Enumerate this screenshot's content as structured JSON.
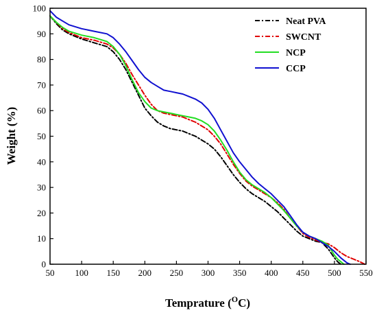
{
  "chart_data": {
    "type": "line",
    "xlabel": "Temprature",
    "xlabel_unit_base": "C",
    "xlabel_unit_sup": "O",
    "ylabel": "Weight (%)",
    "xlim": [
      50,
      550
    ],
    "ylim": [
      0,
      100
    ],
    "xticks": [
      50,
      100,
      150,
      200,
      250,
      300,
      350,
      400,
      450,
      500,
      550
    ],
    "yticks": [
      0,
      10,
      20,
      30,
      40,
      50,
      60,
      70,
      80,
      90,
      100
    ],
    "grid": false,
    "legend_position": "top-right",
    "series": [
      {
        "name": "Neat PVA",
        "color": "#000000",
        "dash": "dashdot",
        "x": [
          50,
          60,
          70,
          80,
          100,
          120,
          140,
          150,
          160,
          170,
          180,
          190,
          200,
          210,
          220,
          230,
          240,
          250,
          260,
          270,
          280,
          290,
          300,
          310,
          320,
          330,
          340,
          350,
          360,
          370,
          380,
          390,
          400,
          410,
          420,
          430,
          440,
          450,
          460,
          470,
          480,
          490,
          500,
          505,
          510
        ],
        "values": [
          97,
          94,
          91.5,
          90,
          88,
          86.5,
          85,
          83,
          80,
          76,
          71,
          66,
          61,
          58,
          55.5,
          54,
          53,
          52.5,
          52,
          51,
          50,
          48.5,
          47,
          45,
          42,
          38.5,
          35,
          32,
          29.5,
          27.5,
          26,
          24.5,
          22.5,
          20.5,
          18,
          15.5,
          13,
          11,
          10,
          9,
          8.5,
          6,
          2.5,
          1,
          0
        ]
      },
      {
        "name": "SWCNT",
        "color": "#e00000",
        "dash": "dashdot",
        "x": [
          50,
          60,
          70,
          80,
          100,
          120,
          140,
          150,
          160,
          170,
          180,
          190,
          200,
          210,
          220,
          230,
          240,
          250,
          260,
          270,
          280,
          290,
          300,
          310,
          320,
          330,
          340,
          350,
          360,
          370,
          380,
          390,
          400,
          410,
          420,
          430,
          440,
          450,
          460,
          470,
          480,
          490,
          500,
          510,
          520,
          530,
          540,
          548
        ],
        "values": [
          97,
          94.5,
          92,
          90.5,
          88.5,
          87.5,
          86,
          84.5,
          82,
          78.5,
          74,
          70,
          66,
          62.5,
          60,
          59,
          58.5,
          58,
          57.5,
          56.5,
          55.5,
          54,
          52.5,
          50,
          47,
          43,
          39,
          35.5,
          32.5,
          30.5,
          29,
          27.5,
          26,
          24,
          21.5,
          18,
          15,
          12,
          10.5,
          9.5,
          8.5,
          8,
          6.5,
          4.5,
          3,
          2,
          1,
          0
        ]
      },
      {
        "name": "NCP",
        "color": "#22dd22",
        "dash": "solid",
        "x": [
          50,
          60,
          70,
          80,
          100,
          120,
          140,
          150,
          160,
          170,
          180,
          190,
          200,
          210,
          220,
          230,
          240,
          250,
          260,
          270,
          280,
          290,
          300,
          310,
          320,
          330,
          340,
          350,
          360,
          370,
          380,
          390,
          400,
          410,
          420,
          430,
          440,
          450,
          460,
          470,
          480,
          490,
          495,
          500,
          505,
          510,
          515
        ],
        "values": [
          97,
          94.5,
          92.5,
          91,
          89.5,
          88.5,
          87,
          85,
          82,
          77.5,
          72,
          67,
          63.5,
          61,
          60,
          59.5,
          59,
          58.5,
          58,
          57.5,
          57,
          56,
          54.5,
          52,
          48.5,
          44.5,
          40,
          36,
          33,
          31,
          29.5,
          28,
          26,
          23.5,
          21,
          18,
          15,
          12.5,
          11,
          10,
          9,
          7.5,
          5.5,
          3.5,
          2,
          1,
          0
        ]
      },
      {
        "name": "CCP",
        "color": "#1010d0",
        "dash": "solid",
        "x": [
          50,
          60,
          70,
          80,
          100,
          120,
          140,
          150,
          160,
          170,
          180,
          190,
          200,
          210,
          220,
          230,
          240,
          250,
          260,
          270,
          280,
          290,
          300,
          310,
          320,
          330,
          340,
          350,
          360,
          370,
          380,
          390,
          400,
          410,
          420,
          430,
          440,
          450,
          460,
          470,
          480,
          490,
          500,
          510,
          520,
          525
        ],
        "values": [
          99,
          96.5,
          95,
          93.5,
          92,
          91,
          90,
          88.5,
          86,
          83,
          79.5,
          76,
          73,
          71,
          69.5,
          68,
          67.5,
          67,
          66.5,
          65.5,
          64.5,
          63,
          60.5,
          57,
          52.5,
          48,
          43.5,
          40,
          37,
          34,
          31.5,
          29.5,
          27.5,
          25,
          22.5,
          19,
          15.5,
          12.5,
          11,
          10,
          8.5,
          7,
          5,
          2.5,
          0.5,
          0
        ]
      }
    ]
  }
}
